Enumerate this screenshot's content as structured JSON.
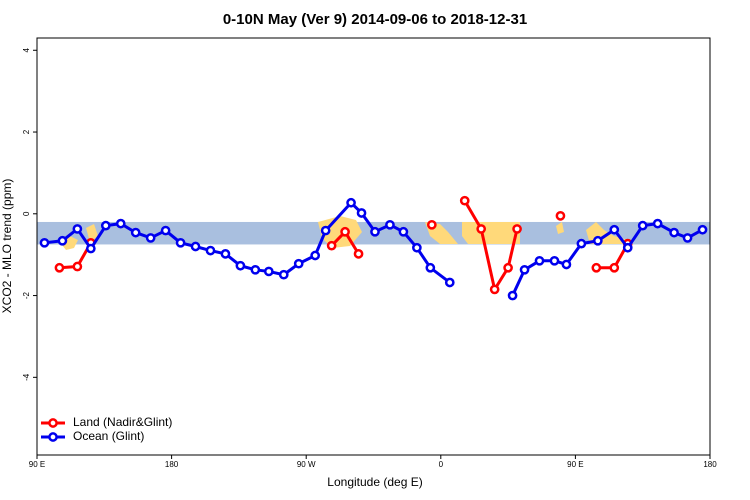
{
  "chart_data": {
    "type": "line",
    "title": "0-10N May (Ver 9)   2014-09-06 to 2018-12-31",
    "x_label": "Longitude (deg E)",
    "y_label": "XCO2 - MLO trend (ppm)",
    "xlim": [
      90,
      540
    ],
    "ylim": [
      -5.9,
      4.3
    ],
    "xticks": [
      {
        "value": 90,
        "label": "90 E"
      },
      180,
      {
        "value": 270,
        "label": "90 W"
      },
      {
        "value": 360,
        "label": "0"
      },
      {
        "value": 450,
        "label": "90 E"
      },
      {
        "value": 540,
        "label": "180"
      }
    ],
    "yticks": [
      -4,
      -2,
      0,
      2,
      4
    ],
    "band": [
      -0.75,
      -0.2
    ],
    "band_color": "#a9bfdf",
    "legend": "bottom-left",
    "series": [
      {
        "name": "Land (Nadir&Glint)",
        "color": "#ff0000",
        "x": [
          105,
          117,
          126,
          null,
          287,
          296,
          305,
          null,
          354,
          null,
          376,
          387,
          396,
          405,
          411,
          null,
          440,
          null,
          464,
          476,
          485
        ],
        "values": [
          -1.32,
          -1.29,
          -0.71,
          null,
          -0.78,
          -0.44,
          -0.98,
          null,
          -0.27,
          null,
          0.32,
          -0.37,
          -1.85,
          -1.32,
          -0.37,
          null,
          -0.05,
          null,
          -1.32,
          -1.32,
          -0.73
        ]
      },
      {
        "name": "Ocean (Glint)",
        "color": "#0000ee",
        "x": [
          95,
          107,
          117,
          126,
          136,
          146,
          156,
          166,
          176,
          186,
          196,
          206,
          216,
          226,
          236,
          245,
          255,
          265,
          276,
          283,
          300,
          307,
          316,
          326,
          335,
          344,
          353,
          366,
          null,
          408,
          416,
          426,
          436,
          444,
          454,
          465,
          476,
          485,
          495,
          505,
          516,
          525,
          535
        ],
        "values": [
          -0.71,
          -0.66,
          -0.37,
          -0.85,
          -0.29,
          -0.24,
          -0.46,
          -0.59,
          -0.41,
          -0.71,
          -0.8,
          -0.9,
          -0.98,
          -1.27,
          -1.37,
          -1.41,
          -1.49,
          -1.22,
          -1.02,
          -0.41,
          0.27,
          0.02,
          -0.44,
          -0.27,
          -0.44,
          -0.83,
          -1.32,
          -1.68,
          null,
          -2.0,
          -1.37,
          -1.15,
          -1.15,
          -1.24,
          -0.73,
          -0.66,
          -0.39,
          -0.83,
          -0.29,
          -0.24,
          -0.46,
          -0.59,
          -0.39
        ]
      }
    ]
  }
}
